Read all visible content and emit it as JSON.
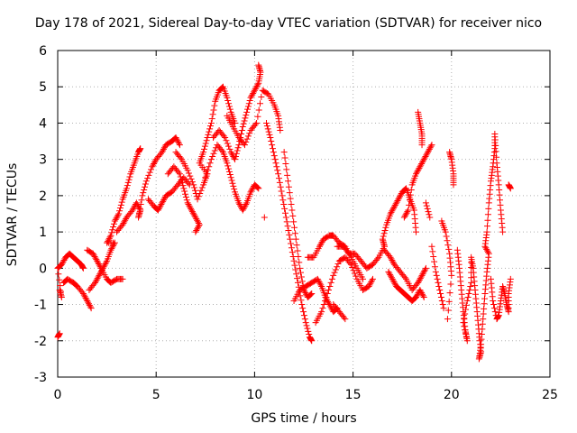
{
  "chart_data": {
    "type": "scatter",
    "title": "Day 178 of 2021, Sidereal Day-to-day VTEC variation (SDTVAR) for receiver nico",
    "xlabel": "GPS time / hours",
    "ylabel": "SDTVAR / TECUs",
    "xlim": [
      0,
      25
    ],
    "ylim": [
      -3,
      6
    ],
    "xticks": [
      "0",
      "5",
      "10",
      "15",
      "20",
      "25"
    ],
    "yticks": [
      "-3",
      "-2",
      "-1",
      "0",
      "1",
      "2",
      "3",
      "4",
      "5",
      "6"
    ],
    "grid": true,
    "marker": "+",
    "marker_color": "#ff0000",
    "series": [
      {
        "name": "SDTVAR",
        "points": [
          [
            0.0,
            -1.9
          ],
          [
            0.1,
            -1.8
          ],
          [
            0.1,
            -0.6
          ],
          [
            0.2,
            -0.8
          ],
          [
            0.0,
            0.0
          ],
          [
            0.2,
            0.1
          ],
          [
            0.4,
            0.3
          ],
          [
            0.6,
            0.4
          ],
          [
            0.8,
            0.3
          ],
          [
            1.0,
            0.2
          ],
          [
            1.2,
            0.1
          ],
          [
            1.3,
            0.0
          ],
          [
            0.3,
            -0.4
          ],
          [
            0.5,
            -0.3
          ],
          [
            0.8,
            -0.4
          ],
          [
            1.0,
            -0.5
          ],
          [
            1.3,
            -0.7
          ],
          [
            1.5,
            -0.9
          ],
          [
            1.7,
            -1.1
          ],
          [
            1.5,
            0.5
          ],
          [
            1.8,
            0.4
          ],
          [
            2.0,
            0.2
          ],
          [
            2.2,
            0.0
          ],
          [
            2.5,
            -0.3
          ],
          [
            2.7,
            -0.4
          ],
          [
            3.0,
            -0.3
          ],
          [
            3.3,
            -0.3
          ],
          [
            1.6,
            -0.6
          ],
          [
            1.9,
            -0.4
          ],
          [
            2.1,
            -0.2
          ],
          [
            2.3,
            0.0
          ],
          [
            2.5,
            0.2
          ],
          [
            2.7,
            0.5
          ],
          [
            2.9,
            0.7
          ],
          [
            2.5,
            0.7
          ],
          [
            2.7,
            0.9
          ],
          [
            2.9,
            1.3
          ],
          [
            3.1,
            1.5
          ],
          [
            3.3,
            1.9
          ],
          [
            3.5,
            2.2
          ],
          [
            3.7,
            2.6
          ],
          [
            3.9,
            2.9
          ],
          [
            4.1,
            3.2
          ],
          [
            4.2,
            3.3
          ],
          [
            3.0,
            1.0
          ],
          [
            3.3,
            1.2
          ],
          [
            3.5,
            1.4
          ],
          [
            3.8,
            1.6
          ],
          [
            4.0,
            1.8
          ],
          [
            4.2,
            1.6
          ],
          [
            4.1,
            1.4
          ],
          [
            4.3,
            2.0
          ],
          [
            4.5,
            2.4
          ],
          [
            4.8,
            2.8
          ],
          [
            5.0,
            3.0
          ],
          [
            5.3,
            3.2
          ],
          [
            5.5,
            3.4
          ],
          [
            5.8,
            3.5
          ],
          [
            6.0,
            3.6
          ],
          [
            6.2,
            3.4
          ],
          [
            4.6,
            1.9
          ],
          [
            4.9,
            1.7
          ],
          [
            5.1,
            1.6
          ],
          [
            5.3,
            1.8
          ],
          [
            5.5,
            2.0
          ],
          [
            5.8,
            2.1
          ],
          [
            6.1,
            2.3
          ],
          [
            6.4,
            2.5
          ],
          [
            6.7,
            2.3
          ],
          [
            5.6,
            2.6
          ],
          [
            5.9,
            2.8
          ],
          [
            6.2,
            2.6
          ],
          [
            6.4,
            2.2
          ],
          [
            6.6,
            1.8
          ],
          [
            6.8,
            1.6
          ],
          [
            7.0,
            1.4
          ],
          [
            7.2,
            1.2
          ],
          [
            7.0,
            1.0
          ],
          [
            6.0,
            3.2
          ],
          [
            6.3,
            3.0
          ],
          [
            6.6,
            2.7
          ],
          [
            6.9,
            2.3
          ],
          [
            7.1,
            1.9
          ],
          [
            7.4,
            2.3
          ],
          [
            7.6,
            2.6
          ],
          [
            7.2,
            2.9
          ],
          [
            7.4,
            3.2
          ],
          [
            7.6,
            3.6
          ],
          [
            7.8,
            4.0
          ],
          [
            8.0,
            4.6
          ],
          [
            8.2,
            4.9
          ],
          [
            8.4,
            5.0
          ],
          [
            8.6,
            4.7
          ],
          [
            8.8,
            4.3
          ],
          [
            9.0,
            4.0
          ],
          [
            7.5,
            2.5
          ],
          [
            7.8,
            3.0
          ],
          [
            8.1,
            3.4
          ],
          [
            8.4,
            3.2
          ],
          [
            8.6,
            2.9
          ],
          [
            8.8,
            2.5
          ],
          [
            9.0,
            2.1
          ],
          [
            9.2,
            1.8
          ],
          [
            9.4,
            1.6
          ],
          [
            9.6,
            1.8
          ],
          [
            9.8,
            2.1
          ],
          [
            10.0,
            2.3
          ],
          [
            10.2,
            2.2
          ],
          [
            7.9,
            3.6
          ],
          [
            8.2,
            3.8
          ],
          [
            8.5,
            3.6
          ],
          [
            8.8,
            3.2
          ],
          [
            9.0,
            3.0
          ],
          [
            9.2,
            3.4
          ],
          [
            9.4,
            3.9
          ],
          [
            9.6,
            4.3
          ],
          [
            9.8,
            4.7
          ],
          [
            10.0,
            4.9
          ],
          [
            10.2,
            5.1
          ],
          [
            10.3,
            5.4
          ],
          [
            10.2,
            5.6
          ],
          [
            8.6,
            4.2
          ],
          [
            8.9,
            3.9
          ],
          [
            9.2,
            3.6
          ],
          [
            9.5,
            3.4
          ],
          [
            9.8,
            3.8
          ],
          [
            10.1,
            4.0
          ],
          [
            10.4,
            4.9
          ],
          [
            10.7,
            4.8
          ],
          [
            11.0,
            4.5
          ],
          [
            11.2,
            4.2
          ],
          [
            11.3,
            3.8
          ],
          [
            10.5,
            1.4
          ],
          [
            10.6,
            4.0
          ],
          [
            10.8,
            3.6
          ],
          [
            11.0,
            3.1
          ],
          [
            11.2,
            2.6
          ],
          [
            11.4,
            2.0
          ],
          [
            11.6,
            1.4
          ],
          [
            11.8,
            0.8
          ],
          [
            12.0,
            0.2
          ],
          [
            12.2,
            -0.4
          ],
          [
            12.4,
            -1.0
          ],
          [
            12.6,
            -1.5
          ],
          [
            12.8,
            -1.9
          ],
          [
            12.9,
            -2.0
          ],
          [
            11.5,
            3.2
          ],
          [
            11.7,
            2.4
          ],
          [
            11.9,
            1.6
          ],
          [
            12.1,
            0.8
          ],
          [
            12.3,
            0.0
          ],
          [
            12.5,
            -0.6
          ],
          [
            12.7,
            -0.8
          ],
          [
            12.9,
            -0.7
          ],
          [
            12.0,
            -0.9
          ],
          [
            12.3,
            -0.6
          ],
          [
            12.6,
            -0.5
          ],
          [
            12.9,
            -0.4
          ],
          [
            13.2,
            -0.3
          ],
          [
            13.4,
            -0.5
          ],
          [
            13.6,
            -0.8
          ],
          [
            13.8,
            -1.0
          ],
          [
            14.0,
            -1.2
          ],
          [
            14.2,
            -1.1
          ],
          [
            12.7,
            0.3
          ],
          [
            13.0,
            0.3
          ],
          [
            13.3,
            0.6
          ],
          [
            13.5,
            0.8
          ],
          [
            13.8,
            0.9
          ],
          [
            14.0,
            0.9
          ],
          [
            14.3,
            0.7
          ],
          [
            14.6,
            0.6
          ],
          [
            14.9,
            0.3
          ],
          [
            15.2,
            0.0
          ],
          [
            15.5,
            -0.3
          ],
          [
            13.1,
            -1.5
          ],
          [
            13.4,
            -1.2
          ],
          [
            13.7,
            -0.7
          ],
          [
            14.0,
            -0.2
          ],
          [
            14.3,
            0.2
          ],
          [
            14.6,
            0.3
          ],
          [
            14.9,
            0.1
          ],
          [
            15.2,
            -0.3
          ],
          [
            15.5,
            -0.6
          ],
          [
            15.8,
            -0.5
          ],
          [
            16.0,
            -0.3
          ],
          [
            14.0,
            -1.0
          ],
          [
            14.3,
            -1.2
          ],
          [
            14.6,
            -1.4
          ],
          [
            14.2,
            0.6
          ],
          [
            14.5,
            0.6
          ],
          [
            14.8,
            0.4
          ],
          [
            15.1,
            0.4
          ],
          [
            15.4,
            0.2
          ],
          [
            15.7,
            0.0
          ],
          [
            16.0,
            0.1
          ],
          [
            16.3,
            0.3
          ],
          [
            16.6,
            0.6
          ],
          [
            16.5,
            0.8
          ],
          [
            16.7,
            1.2
          ],
          [
            16.9,
            1.5
          ],
          [
            17.1,
            1.7
          ],
          [
            17.3,
            1.9
          ],
          [
            17.5,
            2.1
          ],
          [
            17.7,
            2.2
          ],
          [
            17.9,
            1.9
          ],
          [
            18.1,
            1.6
          ],
          [
            18.2,
            1.0
          ],
          [
            16.8,
            -0.1
          ],
          [
            17.0,
            -0.3
          ],
          [
            17.2,
            -0.5
          ],
          [
            17.4,
            -0.6
          ],
          [
            17.6,
            -0.7
          ],
          [
            17.8,
            -0.8
          ],
          [
            18.0,
            -0.9
          ],
          [
            18.2,
            -0.8
          ],
          [
            18.4,
            -0.6
          ],
          [
            18.6,
            -0.8
          ],
          [
            16.6,
            0.5
          ],
          [
            16.9,
            0.3
          ],
          [
            17.1,
            0.1
          ],
          [
            17.4,
            -0.1
          ],
          [
            17.7,
            -0.3
          ],
          [
            18.0,
            -0.6
          ],
          [
            18.3,
            -0.4
          ],
          [
            18.5,
            -0.2
          ],
          [
            18.7,
            0.0
          ],
          [
            17.6,
            1.4
          ],
          [
            17.8,
            1.6
          ],
          [
            18.0,
            2.3
          ],
          [
            18.2,
            2.6
          ],
          [
            18.4,
            2.8
          ],
          [
            18.6,
            3.0
          ],
          [
            18.8,
            3.2
          ],
          [
            19.0,
            3.4
          ],
          [
            18.7,
            1.8
          ],
          [
            18.9,
            1.4
          ],
          [
            18.3,
            4.3
          ],
          [
            18.4,
            4.0
          ],
          [
            18.5,
            3.7
          ],
          [
            18.5,
            3.4
          ],
          [
            19.0,
            0.6
          ],
          [
            19.2,
            -0.1
          ],
          [
            19.4,
            -0.6
          ],
          [
            19.6,
            -1.1
          ],
          [
            19.5,
            1.3
          ],
          [
            19.7,
            1.0
          ],
          [
            19.9,
            0.4
          ],
          [
            20.0,
            -0.2
          ],
          [
            19.8,
            -1.4
          ],
          [
            19.9,
            3.2
          ],
          [
            20.0,
            3.0
          ],
          [
            20.1,
            2.6
          ],
          [
            20.1,
            2.3
          ],
          [
            20.3,
            0.5
          ],
          [
            20.4,
            0.0
          ],
          [
            20.5,
            -0.6
          ],
          [
            20.6,
            -1.2
          ],
          [
            20.7,
            -1.7
          ],
          [
            20.8,
            -2.0
          ],
          [
            20.6,
            -1.5
          ],
          [
            20.8,
            -0.9
          ],
          [
            21.0,
            -0.4
          ],
          [
            21.0,
            0.3
          ],
          [
            21.1,
            0.0
          ],
          [
            21.2,
            -0.6
          ],
          [
            21.3,
            -1.2
          ],
          [
            21.4,
            -1.8
          ],
          [
            21.5,
            -2.3
          ],
          [
            21.4,
            -2.5
          ],
          [
            21.5,
            -2.1
          ],
          [
            21.6,
            -1.4
          ],
          [
            21.7,
            -0.7
          ],
          [
            21.8,
            -0.1
          ],
          [
            21.9,
            0.4
          ],
          [
            21.7,
            0.6
          ],
          [
            21.8,
            1.0
          ],
          [
            21.9,
            1.8
          ],
          [
            22.0,
            2.4
          ],
          [
            22.1,
            2.8
          ],
          [
            22.2,
            3.3
          ],
          [
            22.2,
            3.7
          ],
          [
            22.3,
            2.9
          ],
          [
            22.4,
            2.3
          ],
          [
            22.5,
            1.6
          ],
          [
            22.6,
            1.0
          ],
          [
            22.0,
            -0.3
          ],
          [
            22.1,
            -0.9
          ],
          [
            22.3,
            -1.4
          ],
          [
            22.4,
            -1.3
          ],
          [
            22.5,
            -0.9
          ],
          [
            22.6,
            -0.5
          ],
          [
            22.7,
            -0.7
          ],
          [
            22.8,
            -1.0
          ],
          [
            22.9,
            -1.2
          ],
          [
            22.9,
            -0.7
          ],
          [
            23.0,
            -0.3
          ],
          [
            22.9,
            2.3
          ],
          [
            23.0,
            2.2
          ]
        ]
      }
    ]
  }
}
